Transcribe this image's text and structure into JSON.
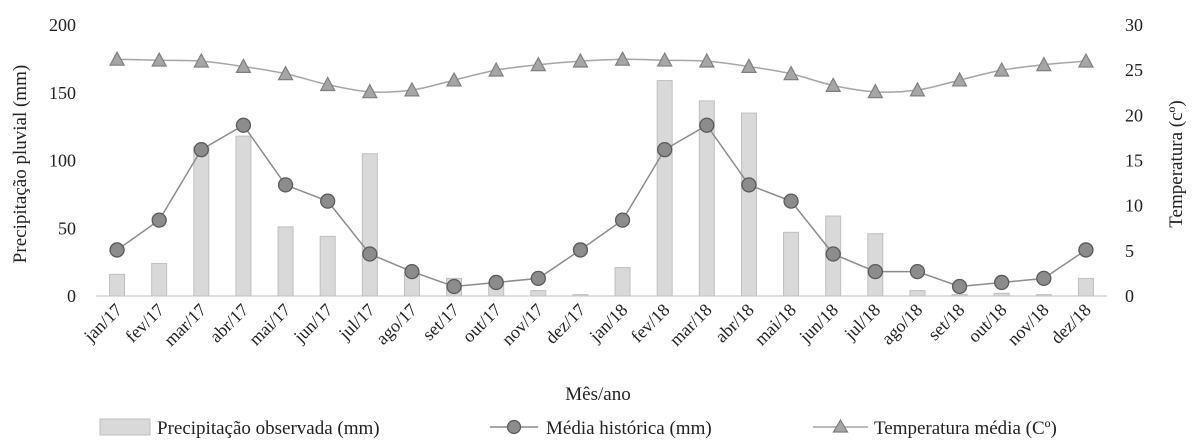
{
  "chart_data": {
    "type": "bar-line-combo",
    "categories": [
      "jan/17",
      "fev/17",
      "mar/17",
      "abr/17",
      "mai/17",
      "jun/17",
      "jul/17",
      "ago/17",
      "set/17",
      "out/17",
      "nov/17",
      "dez/17",
      "jan/18",
      "fev/18",
      "mar/18",
      "abr/18",
      "mai/18",
      "jun/18",
      "jul/18",
      "ago/18",
      "set/18",
      "out/18",
      "nov/18",
      "dez/18"
    ],
    "xlabel": "Mês/ano",
    "ylabel": "Precipitação pluvial (mm)",
    "y2label": "Temperatura (cº)",
    "ylim": [
      0,
      200
    ],
    "y2lim": [
      0,
      30
    ],
    "yticks": [
      0,
      50,
      100,
      150,
      200
    ],
    "y2ticks": [
      0,
      5,
      10,
      15,
      20,
      25,
      30
    ],
    "grid": false,
    "legend_position": "bottom",
    "series": [
      {
        "name": "Precipitação observada (mm)",
        "kind": "bar",
        "axis": "left",
        "color": "#d9d9d9",
        "values": [
          16,
          24,
          110,
          118,
          51,
          44,
          105,
          16,
          13,
          10,
          4,
          1,
          21,
          159,
          144,
          135,
          47,
          59,
          46,
          4,
          1,
          2,
          1,
          13
        ]
      },
      {
        "name": "Média histórica (mm)",
        "kind": "line",
        "marker": "circle",
        "axis": "left",
        "color": "#8c8c8c",
        "values": [
          34,
          56,
          108,
          126,
          82,
          70,
          31,
          18,
          7,
          10,
          13,
          34,
          56,
          108,
          126,
          82,
          70,
          31,
          18,
          18,
          7,
          10,
          13,
          34
        ]
      },
      {
        "name": "Temperatura média (Cº)",
        "kind": "line",
        "marker": "triangle",
        "axis": "right",
        "color": "#a6a6a6",
        "values": [
          26.2,
          26.1,
          26.0,
          25.4,
          24.6,
          23.4,
          22.6,
          22.8,
          23.9,
          25.0,
          25.6,
          26.0,
          26.2,
          26.1,
          26.0,
          25.4,
          24.6,
          23.3,
          22.6,
          22.8,
          23.9,
          25.0,
          25.6,
          26.0
        ]
      }
    ]
  }
}
